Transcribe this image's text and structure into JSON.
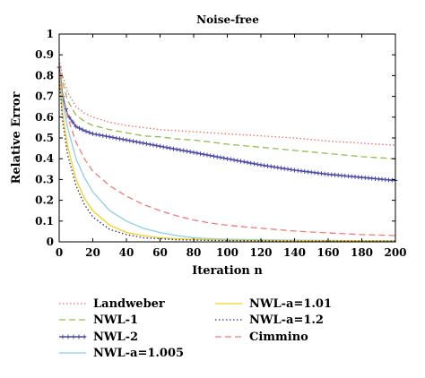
{
  "chart_data": {
    "type": "line",
    "title": "Noise-free",
    "xlabel": "Iteration n",
    "ylabel": "Relative Error",
    "xlim": [
      0,
      200
    ],
    "ylim": [
      0,
      1
    ],
    "xticks": [
      "0",
      "20",
      "40",
      "60",
      "80",
      "100",
      "120",
      "140",
      "160",
      "180",
      "200"
    ],
    "yticks": [
      "0",
      "0.1",
      "0.2",
      "0.3",
      "0.4",
      "0.5",
      "0.6",
      "0.7",
      "0.8",
      "0.9",
      "1"
    ],
    "grid": false,
    "legend_position": "below",
    "x": [
      0,
      2,
      5,
      10,
      15,
      20,
      30,
      40,
      50,
      60,
      70,
      80,
      90,
      100,
      120,
      140,
      160,
      180,
      200
    ],
    "series": [
      {
        "name": "Landweber",
        "color": "#f06a6a",
        "style": "dotted",
        "values": [
          0.88,
          0.8,
          0.72,
          0.65,
          0.62,
          0.6,
          0.575,
          0.56,
          0.55,
          0.54,
          0.535,
          0.53,
          0.525,
          0.52,
          0.51,
          0.5,
          0.485,
          0.475,
          0.465
        ]
      },
      {
        "name": "NWL-1",
        "color": "#8fbf4a",
        "style": "dashed",
        "values": [
          0.86,
          0.77,
          0.68,
          0.61,
          0.58,
          0.56,
          0.54,
          0.525,
          0.51,
          0.505,
          0.495,
          0.49,
          0.48,
          0.47,
          0.455,
          0.44,
          0.425,
          0.41,
          0.4
        ]
      },
      {
        "name": "NWL-2",
        "color": "#4a4aa8",
        "style": "solid-plus",
        "values": [
          0.84,
          0.7,
          0.61,
          0.555,
          0.535,
          0.52,
          0.505,
          0.49,
          0.475,
          0.46,
          0.445,
          0.43,
          0.415,
          0.4,
          0.37,
          0.345,
          0.325,
          0.31,
          0.295
        ]
      },
      {
        "name": "NWL-a=1.005",
        "color": "#8ccfe0",
        "style": "solid",
        "values": [
          0.82,
          0.68,
          0.55,
          0.4,
          0.31,
          0.24,
          0.15,
          0.1,
          0.065,
          0.045,
          0.03,
          0.02,
          0.015,
          0.012,
          0.01,
          0.008,
          0.007,
          0.006,
          0.005
        ]
      },
      {
        "name": "NWL-a=1.01",
        "color": "#f2d21a",
        "style": "solid",
        "values": [
          0.8,
          0.62,
          0.46,
          0.3,
          0.21,
          0.15,
          0.08,
          0.045,
          0.03,
          0.02,
          0.015,
          0.012,
          0.01,
          0.008,
          0.007,
          0.006,
          0.005,
          0.005,
          0.004
        ]
      },
      {
        "name": "NWL-a=1.2",
        "color": "#2a2a78",
        "style": "dotted",
        "values": [
          0.79,
          0.58,
          0.42,
          0.27,
          0.18,
          0.12,
          0.06,
          0.035,
          0.02,
          0.015,
          0.01,
          0.008,
          0.007,
          0.006,
          0.005,
          0.004,
          0.004,
          0.003,
          0.003
        ]
      },
      {
        "name": "Cimmino",
        "color": "#f07a7a",
        "style": "dashed",
        "values": [
          0.86,
          0.72,
          0.6,
          0.48,
          0.4,
          0.34,
          0.27,
          0.22,
          0.18,
          0.15,
          0.125,
          0.105,
          0.09,
          0.08,
          0.065,
          0.052,
          0.043,
          0.035,
          0.03
        ]
      }
    ]
  }
}
